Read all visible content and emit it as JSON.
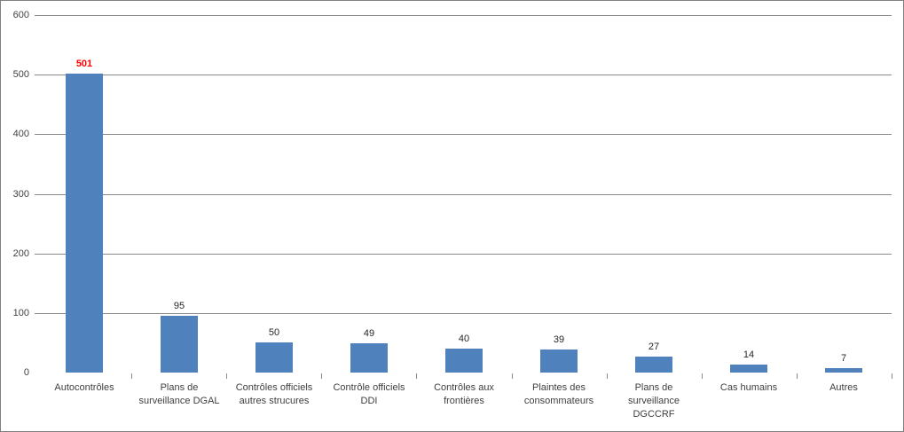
{
  "chart_data": {
    "type": "bar",
    "title": "",
    "categories": [
      "Autocontrôles",
      "Plans de\nsurveillance DGAL",
      "Contrôles officiels\nautres strucures",
      "Contrôle officiels\nDDI",
      "Contrôles aux\nfrontières",
      "Plaintes des\nconsommateurs",
      "Plans de\nsurveillance\nDGCCRF",
      "Cas humains",
      "Autres"
    ],
    "values": [
      501,
      95,
      50,
      49,
      40,
      39,
      27,
      14,
      7
    ],
    "data_labels": [
      "501",
      "95",
      "50",
      "49",
      "40",
      "39",
      "27",
      "14",
      "7"
    ],
    "highlight_index": 0,
    "highlight_color": "#ff0000",
    "series_name": "",
    "xlabel": "",
    "ylabel": "",
    "ylim": [
      0,
      600
    ],
    "yticks": [
      0,
      100,
      200,
      300,
      400,
      500,
      600
    ],
    "grid": "horizontal",
    "legend_position": "none",
    "bar_color": "#4f81bd",
    "gridline_color": "#8a8a8a",
    "axis_text_color": "#3f3f3f",
    "data_label_color": "#262626",
    "frame_border_color": "#808080"
  }
}
